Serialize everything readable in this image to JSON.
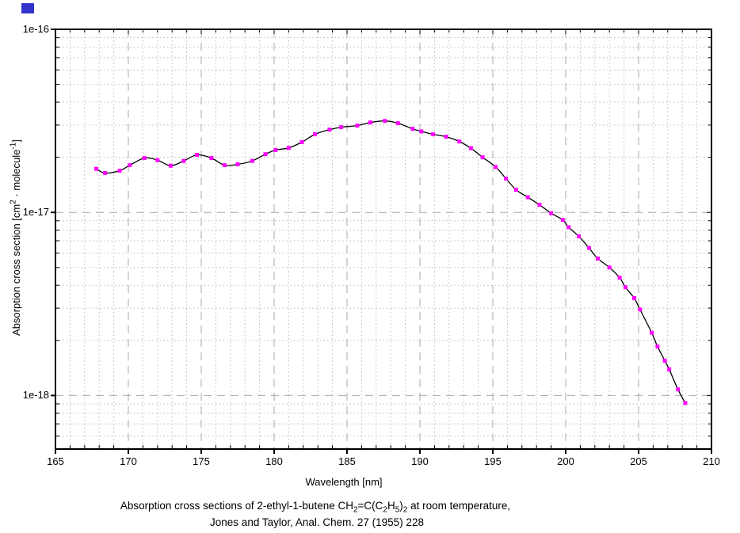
{
  "decorations": {
    "corner_marker_color": "#3333cc",
    "background_color": "#ffffff",
    "border_color": "#000000",
    "grid_minor_color": "#b9b9b9",
    "grid_major_color": "#a8a8a8"
  },
  "caption": {
    "line1_parts": [
      {
        "text": "Absorption cross sections of 2-ethyl-1-butene CH"
      },
      {
        "sub": "2"
      },
      {
        "text": "=C(C"
      },
      {
        "sub": "2"
      },
      {
        "text": "H"
      },
      {
        "sub": "5"
      },
      {
        "text": ")"
      },
      {
        "sub": "2"
      },
      {
        "text": " at room temperature,"
      }
    ],
    "line2": "Jones and Taylor, Anal. Chem. 27 (1955) 228"
  },
  "chart_data": {
    "type": "line",
    "title": "",
    "xlabel": "Wavelength [nm]",
    "ylabel_parts": [
      {
        "text": "Absorption cross section [cm"
      },
      {
        "sup": "2"
      },
      {
        "text": " · molecule"
      },
      {
        "sup": "-1"
      },
      {
        "text": "]"
      }
    ],
    "xlim": [
      165,
      210
    ],
    "ylim": [
      5.1e-19,
      1e-16
    ],
    "yscale": "log",
    "grid": true,
    "legend": "none",
    "x_major_ticks": [
      165,
      170,
      175,
      180,
      185,
      190,
      195,
      200,
      205,
      210
    ],
    "x_minor_step": 1,
    "y_major_ticks": [
      1e-16,
      1e-17,
      1e-18
    ],
    "y_tick_labels": [
      "1e-16",
      "1e-17",
      "1e-18"
    ],
    "series": [
      {
        "name": "Jones and Taylor, Anal. Chem. 27 (1955) 228",
        "line_color": "#000000",
        "marker": "square",
        "marker_color": "#ff00ff",
        "x": [
          167.8,
          168.4,
          169.4,
          170.1,
          171.1,
          172.0,
          172.9,
          173.8,
          174.7,
          175.7,
          176.6,
          177.5,
          178.5,
          179.4,
          180.1,
          181.0,
          181.9,
          182.8,
          183.8,
          184.6,
          185.7,
          186.6,
          187.6,
          188.5,
          189.5,
          190.1,
          190.9,
          191.8,
          192.7,
          193.5,
          194.3,
          195.2,
          195.9,
          196.6,
          197.4,
          198.2,
          199.0,
          199.8,
          200.2,
          200.9,
          201.6,
          202.2,
          203.0,
          203.7,
          204.1,
          204.7,
          205.1,
          205.9,
          206.3,
          206.8,
          207.1,
          207.7,
          208.2
        ],
        "y": [
          1.73e-17,
          1.64e-17,
          1.69e-17,
          1.81e-17,
          1.98e-17,
          1.93e-17,
          1.8e-17,
          1.91e-17,
          2.06e-17,
          1.98e-17,
          1.81e-17,
          1.83e-17,
          1.91e-17,
          2.08e-17,
          2.19e-17,
          2.25e-17,
          2.42e-17,
          2.67e-17,
          2.83e-17,
          2.92e-17,
          2.98e-17,
          3.1e-17,
          3.16e-17,
          3.07e-17,
          2.86e-17,
          2.77e-17,
          2.67e-17,
          2.59e-17,
          2.44e-17,
          2.24e-17,
          2e-17,
          1.77e-17,
          1.53e-17,
          1.33e-17,
          1.21e-17,
          1.1e-17,
          9.9e-18,
          9.1e-18,
          8.3e-18,
          7.4e-18,
          6.4e-18,
          5.6e-18,
          5e-18,
          4.4e-18,
          3.9e-18,
          3.4e-18,
          2.95e-18,
          2.2e-18,
          1.85e-18,
          1.55e-18,
          1.39e-18,
          1.08e-18,
          9.1e-19
        ]
      }
    ]
  }
}
